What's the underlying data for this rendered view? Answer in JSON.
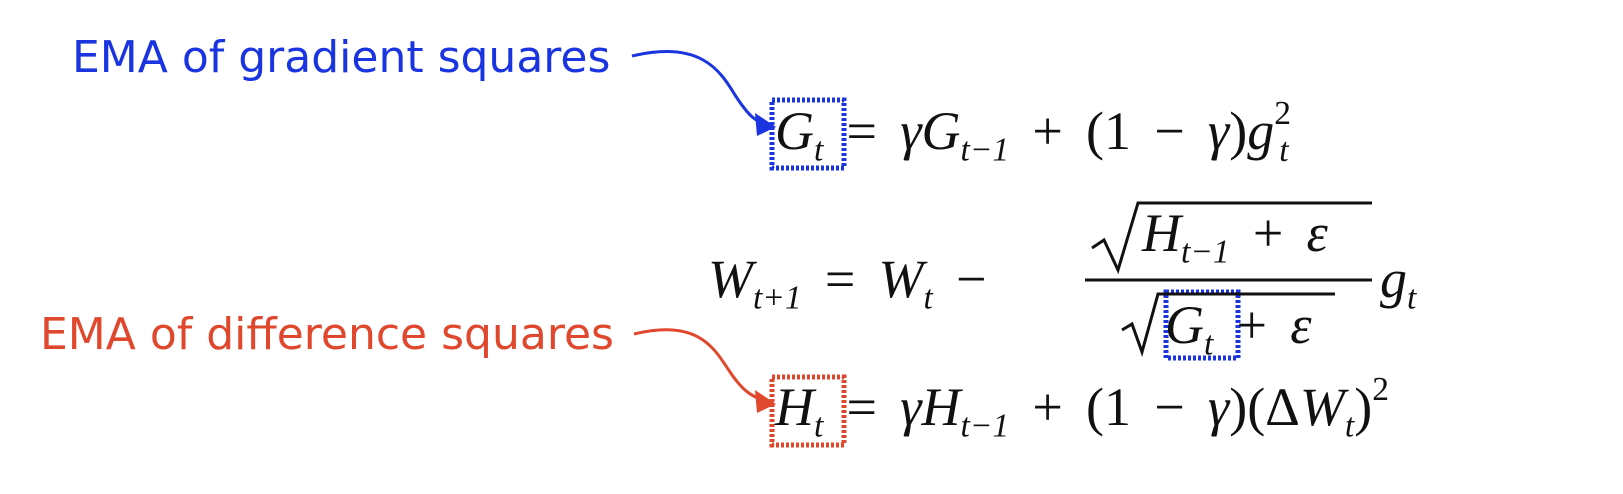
{
  "annotations": {
    "gradient": {
      "text": "EMA of gradient squares",
      "color": "#1a35e0"
    },
    "difference": {
      "text": "EMA of difference squares",
      "color": "#e0482e"
    }
  },
  "equations": {
    "G_update": "G_t = γG_{t−1} + (1 − γ)g_t^2",
    "W_update": "W_{t+1} = W_t − (√(H_{t−1} + ε) / √(G_t + ε)) g_t",
    "H_update": "H_t = γH_{t−1} + (1 − γ)(ΔW_t)^2"
  },
  "symbols": {
    "G": "G",
    "H": "H",
    "W": "W",
    "g": "g",
    "t": "t",
    "t_minus_1": "t−1",
    "t_plus_1": "t+1",
    "gamma": "γ",
    "epsilon": "ε",
    "delta": "Δ",
    "eq": "=",
    "plus": "+",
    "minus": "−",
    "one": "1",
    "two": "2",
    "lparen": "(",
    "rparen": ")"
  }
}
